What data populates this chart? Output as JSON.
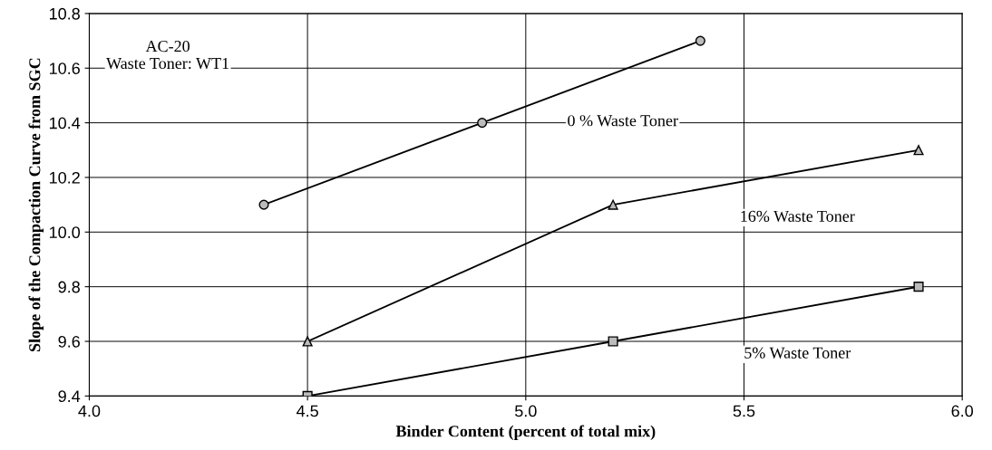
{
  "chart_data": {
    "type": "line",
    "xlabel": "Binder Content (percent of total mix)",
    "ylabel": "Slope of the Compaction Curve from SGC",
    "annotations": [
      "AC-20\nWaste Toner: WT1"
    ],
    "series": [
      {
        "name": "0 % Waste Toner",
        "color": "#000000",
        "marker": "circle",
        "x": [
          4.4,
          4.9,
          5.4
        ],
        "values": [
          10.1,
          10.4,
          10.7
        ]
      },
      {
        "name": "16% Waste Toner",
        "color": "#000000",
        "marker": "triangle",
        "x": [
          4.5,
          5.2,
          5.9
        ],
        "values": [
          9.6,
          10.1,
          10.3
        ]
      },
      {
        "name": "5% Waste Toner",
        "color": "#000000",
        "marker": "square",
        "x": [
          4.5,
          5.2,
          5.9
        ],
        "values": [
          9.4,
          9.6,
          9.8
        ]
      }
    ],
    "xlim": [
      4.0,
      6.0
    ],
    "xticks": [
      {
        "value": 4,
        "label": "4.0"
      },
      4.5,
      {
        "value": 5,
        "label": "5.0"
      },
      5.5,
      {
        "value": 6,
        "label": "6.0"
      }
    ],
    "ylim": [
      9.4,
      10.8
    ],
    "yticks": [
      9.4,
      9.6,
      9.8,
      {
        "value": 10,
        "label": "10.0"
      },
      10.2,
      10.4,
      10.6,
      10.8
    ],
    "grid": true,
    "line_style": "solid"
  }
}
